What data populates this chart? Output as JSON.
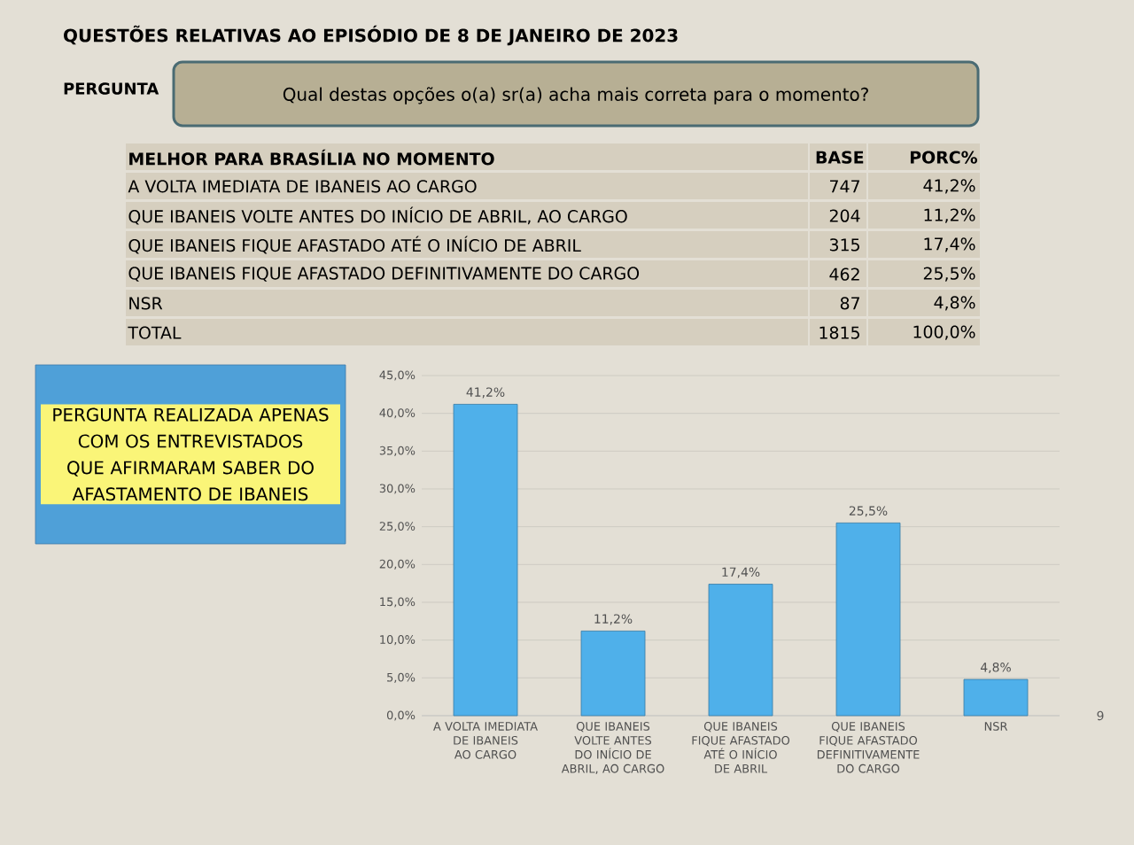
{
  "chart_data": {
    "type": "bar",
    "title": "QUESTÕES RELATIVAS AO EPISÓDIO DE 8 DE JANEIRO DE 2023",
    "subtitle": "Qual destas opções o(a) sr(a) acha mais correta para o momento?",
    "categories": [
      "A VOLTA IMEDIATA DE IBANEIS AO CARGO",
      "QUE IBANEIS VOLTE ANTES DO INÍCIO DE ABRIL, AO CARGO",
      "QUE IBANEIS FIQUE AFASTADO ATÉ O INÍCIO DE ABRIL",
      "QUE IBANEIS FIQUE AFASTADO DEFINITIVAMENTE DO CARGO",
      "NSR"
    ],
    "values": [
      41.2,
      11.2,
      17.4,
      25.5,
      4.8
    ],
    "value_labels": [
      "41,2%",
      "11,2%",
      "17,4%",
      "25,5%",
      "4,8%"
    ],
    "color": "#4fb0ea",
    "ylim": [
      0,
      45
    ],
    "yticks": [
      {
        "value": 0,
        "label": "0,0%"
      },
      {
        "value": 5,
        "label": "5,0%"
      },
      {
        "value": 10,
        "label": "10,0%"
      },
      {
        "value": 15,
        "label": "15,0%"
      },
      {
        "value": 20,
        "label": "20,0%"
      },
      {
        "value": 25,
        "label": "25,0%"
      },
      {
        "value": 30,
        "label": "30,0%"
      },
      {
        "value": 35,
        "label": "35,0%"
      },
      {
        "value": 40,
        "label": "40,0%"
      },
      {
        "value": 45,
        "label": "45,0%"
      }
    ],
    "grid": "y",
    "annotations": [
      "PERGUNTA",
      "MELHOR PARA BRASÍLIA NO MOMENTO",
      "BASE",
      "PORC%",
      "A VOLTA IMEDIATA DE IBANEIS AO CARGO",
      "747",
      "41,2%",
      "QUE IBANEIS VOLTE ANTES DO INÍCIO DE ABRIL, AO CARGO",
      "204",
      "11,2%",
      "QUE IBANEIS FIQUE AFASTADO ATÉ O INÍCIO DE ABRIL",
      "315",
      "17,4%",
      "QUE IBANEIS FIQUE AFASTADO DEFINITIVAMENTE DO CARGO",
      "462",
      "25,5%",
      "NSR",
      "87",
      "4,8%",
      "TOTAL",
      "1815",
      "100,0%",
      "PERGUNTA REALIZADA APENAS COM OS ENTREVISTADOS QUE AFIRMARAM SABER DO AFASTAMENTO DE IBANEIS",
      "9"
    ]
  }
}
